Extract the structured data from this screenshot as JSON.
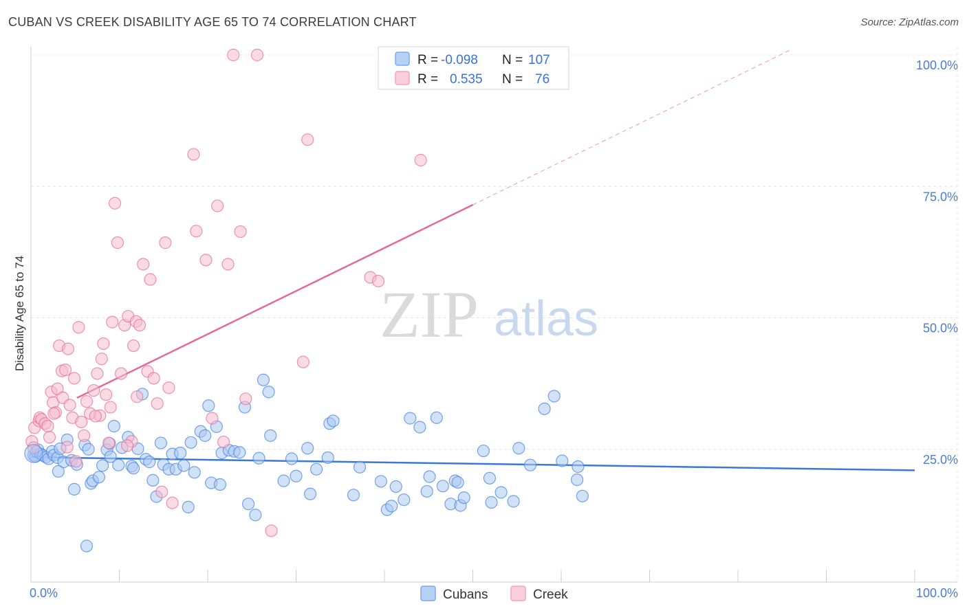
{
  "header": {
    "title": "CUBAN VS CREEK DISABILITY AGE 65 TO 74 CORRELATION CHART",
    "source": "Source: ZipAtlas.com"
  },
  "watermark": {
    "zip": "ZIP",
    "atlas": "atlas"
  },
  "legend": {
    "rows": [
      {
        "r_label": "R =",
        "r_value": "-0.098",
        "n_label": "N =",
        "n_value": "107",
        "color": "#7aaaf0"
      },
      {
        "r_label": "R =",
        "r_value": "0.535",
        "n_label": "N =",
        "n_value": "76",
        "color": "#f5a3bf"
      }
    ]
  },
  "bottom_legend": [
    {
      "label": "Cubans",
      "color": "#7aaaf0"
    },
    {
      "label": "Creek",
      "color": "#f5a3bf"
    }
  ],
  "chart_data": {
    "type": "scatter",
    "title": "CUBAN VS CREEK DISABILITY AGE 65 TO 74 CORRELATION CHART",
    "xlabel": "",
    "ylabel": "Disability Age 65 to 74",
    "xlim": [
      0,
      100
    ],
    "ylim": [
      0,
      100
    ],
    "x_tick_labels": [
      "0.0%",
      "100.0%"
    ],
    "y_ticks": [
      25,
      50,
      75,
      100
    ],
    "y_tick_labels": [
      "25.0%",
      "50.0%",
      "75.0%",
      "100.0%"
    ],
    "grid": true,
    "legend_position": "top-center",
    "series": [
      {
        "name": "Cubans",
        "color": "#4a86e0",
        "fill": "#a9c8f3",
        "trend": {
          "x": [
            0,
            100
          ],
          "y": [
            23.5,
            21.0
          ],
          "dashed_beyond": null
        },
        "points": [
          [
            0.3,
            23.9
          ],
          [
            0.5,
            23.6
          ],
          [
            0.6,
            24.6
          ],
          [
            0.8,
            24.9
          ],
          [
            1.1,
            24.1
          ],
          [
            1.4,
            23.8
          ],
          [
            1.7,
            23.5
          ],
          [
            2.0,
            23.2
          ],
          [
            2.4,
            24.6
          ],
          [
            2.6,
            23.9
          ],
          [
            3.0,
            23.4
          ],
          [
            3.3,
            25.1
          ],
          [
            3.7,
            22.6
          ],
          [
            4.1,
            26.8
          ],
          [
            4.6,
            22.9
          ],
          [
            4.9,
            17.4
          ],
          [
            5.2,
            22.1
          ],
          [
            6.1,
            25.8
          ],
          [
            6.5,
            25.0
          ],
          [
            6.8,
            18.5
          ],
          [
            7.0,
            19.0
          ],
          [
            7.7,
            19.7
          ],
          [
            8.1,
            21.9
          ],
          [
            8.6,
            24.9
          ],
          [
            8.9,
            26.1
          ],
          [
            9.0,
            23.6
          ],
          [
            9.4,
            29.4
          ],
          [
            9.9,
            22.0
          ],
          [
            10.3,
            25.3
          ],
          [
            11.0,
            27.3
          ],
          [
            11.4,
            21.8
          ],
          [
            11.6,
            21.4
          ],
          [
            12.1,
            25.1
          ],
          [
            12.6,
            35.5
          ],
          [
            13.0,
            23.1
          ],
          [
            13.4,
            22.6
          ],
          [
            13.8,
            19.1
          ],
          [
            14.2,
            16.0
          ],
          [
            14.7,
            26.2
          ],
          [
            15.0,
            22.1
          ],
          [
            15.6,
            21.2
          ],
          [
            16.0,
            24.1
          ],
          [
            16.4,
            21.2
          ],
          [
            16.9,
            24.3
          ],
          [
            17.3,
            21.9
          ],
          [
            17.8,
            14.0
          ],
          [
            18.1,
            26.3
          ],
          [
            18.5,
            20.6
          ],
          [
            19.2,
            28.4
          ],
          [
            19.7,
            27.6
          ],
          [
            20.1,
            33.3
          ],
          [
            20.4,
            18.6
          ],
          [
            21.0,
            29.3
          ],
          [
            21.4,
            18.3
          ],
          [
            21.6,
            24.3
          ],
          [
            22.4,
            24.8
          ],
          [
            23.0,
            24.6
          ],
          [
            23.6,
            24.4
          ],
          [
            24.2,
            33.0
          ],
          [
            24.6,
            14.6
          ],
          [
            25.4,
            12.5
          ],
          [
            25.8,
            23.3
          ],
          [
            26.3,
            38.2
          ],
          [
            26.9,
            35.9
          ],
          [
            27.1,
            27.6
          ],
          [
            28.6,
            19.0
          ],
          [
            29.5,
            23.2
          ],
          [
            30.0,
            19.9
          ],
          [
            31.3,
            25.2
          ],
          [
            31.6,
            16.5
          ],
          [
            32.3,
            21.2
          ],
          [
            33.6,
            23.4
          ],
          [
            33.8,
            29.9
          ],
          [
            34.2,
            30.4
          ],
          [
            36.5,
            16.3
          ],
          [
            37.2,
            21.6
          ],
          [
            39.6,
            18.9
          ],
          [
            40.3,
            13.5
          ],
          [
            40.8,
            14.2
          ],
          [
            41.3,
            17.9
          ],
          [
            42.2,
            15.4
          ],
          [
            42.9,
            30.9
          ],
          [
            44.0,
            29.2
          ],
          [
            44.8,
            17.0
          ],
          [
            45.1,
            19.8
          ],
          [
            45.9,
            31.0
          ],
          [
            46.6,
            18.0
          ],
          [
            47.5,
            14.6
          ],
          [
            48.0,
            19.0
          ],
          [
            48.3,
            18.7
          ],
          [
            48.6,
            14.3
          ],
          [
            49.0,
            15.8
          ],
          [
            51.2,
            24.7
          ],
          [
            51.9,
            19.5
          ],
          [
            52.1,
            14.9
          ],
          [
            53.2,
            16.8
          ],
          [
            54.6,
            15.1
          ],
          [
            55.2,
            25.2
          ],
          [
            56.5,
            22.0
          ],
          [
            58.1,
            32.7
          ],
          [
            59.2,
            35.1
          ],
          [
            60.1,
            22.8
          ],
          [
            61.8,
            19.2
          ],
          [
            61.9,
            21.7
          ],
          [
            62.4,
            16.1
          ],
          [
            3.1,
            20.8
          ],
          [
            6.3,
            6.6
          ]
        ]
      },
      {
        "name": "Creek",
        "color": "#e8709a",
        "fill": "#f6bccf",
        "trend": {
          "x": [
            0,
            100
          ],
          "y": [
            30.5,
            112.5
          ],
          "solid_until_x": 50
        },
        "points": [
          [
            0.1,
            26.5
          ],
          [
            0.4,
            29.1
          ],
          [
            0.9,
            30.4
          ],
          [
            1.0,
            31.0
          ],
          [
            1.2,
            30.7
          ],
          [
            1.6,
            29.9
          ],
          [
            1.9,
            29.4
          ],
          [
            2.1,
            27.3
          ],
          [
            2.3,
            35.9
          ],
          [
            2.5,
            33.9
          ],
          [
            2.8,
            32.0
          ],
          [
            3.0,
            36.5
          ],
          [
            3.2,
            44.7
          ],
          [
            3.5,
            39.9
          ],
          [
            3.6,
            34.8
          ],
          [
            3.9,
            40.1
          ],
          [
            4.2,
            44.1
          ],
          [
            4.4,
            33.4
          ],
          [
            4.7,
            31.0
          ],
          [
            4.9,
            38.5
          ],
          [
            5.4,
            48.2
          ],
          [
            5.7,
            30.2
          ],
          [
            6.0,
            27.6
          ],
          [
            6.3,
            34.1
          ],
          [
            6.7,
            31.8
          ],
          [
            7.1,
            36.2
          ],
          [
            7.5,
            39.4
          ],
          [
            7.8,
            31.4
          ],
          [
            8.2,
            45.1
          ],
          [
            8.5,
            35.4
          ],
          [
            8.8,
            26.2
          ],
          [
            9.2,
            49.2
          ],
          [
            9.5,
            71.8
          ],
          [
            9.8,
            64.3
          ],
          [
            10.2,
            39.4
          ],
          [
            10.6,
            48.6
          ],
          [
            11.0,
            50.3
          ],
          [
            11.4,
            26.5
          ],
          [
            11.6,
            44.7
          ],
          [
            11.9,
            49.3
          ],
          [
            12.3,
            48.6
          ],
          [
            12.7,
            60.2
          ],
          [
            13.2,
            39.8
          ],
          [
            13.5,
            57.3
          ],
          [
            13.9,
            38.5
          ],
          [
            14.3,
            33.7
          ],
          [
            14.8,
            16.9
          ],
          [
            15.2,
            64.3
          ],
          [
            15.6,
            36.7
          ],
          [
            16.0,
            14.8
          ],
          [
            18.4,
            81.1
          ],
          [
            18.7,
            66.5
          ],
          [
            19.8,
            61.0
          ],
          [
            20.5,
            30.9
          ],
          [
            21.1,
            71.3
          ],
          [
            21.8,
            26.4
          ],
          [
            22.3,
            60.2
          ],
          [
            22.9,
            100.0
          ],
          [
            23.7,
            66.4
          ],
          [
            24.3,
            34.6
          ],
          [
            25.6,
            100.0
          ],
          [
            27.2,
            9.5
          ],
          [
            30.8,
            41.6
          ],
          [
            31.3,
            83.9
          ],
          [
            38.4,
            57.7
          ],
          [
            39.3,
            57.0
          ],
          [
            44.1,
            80.0
          ],
          [
            5.1,
            22.7
          ],
          [
            7.3,
            31.3
          ],
          [
            9.0,
            33.0
          ],
          [
            10.9,
            25.7
          ],
          [
            12.0,
            35.0
          ],
          [
            0.3,
            25.3
          ],
          [
            2.6,
            31.8
          ],
          [
            4.1,
            25.4
          ],
          [
            8.0,
            42.2
          ]
        ]
      }
    ]
  }
}
